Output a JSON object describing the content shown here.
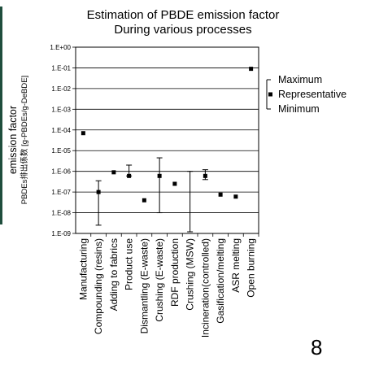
{
  "page": {
    "title_line1": "Estimation of PBDE emission factor",
    "title_line2": "During various processes",
    "page_number": "8"
  },
  "chart_data": {
    "type": "scatter",
    "title": "Estimation of PBDE emission factor During various processes",
    "ylabel": "emission factor",
    "ylabel_sub": "PBDEs排出係数 [g-PBDEs/g-DeBDE]",
    "yscale": "log",
    "ylim": [
      1e-09,
      1
    ],
    "yticks": [
      "1.E-09",
      "1.E-08",
      "1.E-07",
      "1.E-06",
      "1.E-05",
      "1.E-04",
      "1.E-03",
      "1.E-02",
      "1.E-01",
      "1.E+00"
    ],
    "grid": "horizontal",
    "legend_position": "right",
    "legend": [
      "Maximum",
      "Representative",
      "Minimum"
    ],
    "categories": [
      "Manufacturing",
      "Compounding (resins)",
      "Adding to fabrics",
      "Product use",
      "Dismantling (E-waste)",
      "Crushing (E-waste)",
      "RDF production",
      "Crushing (MSW)",
      "Incineration(controlled)",
      "Gasification/melting",
      "ASR melting",
      "Open burning"
    ],
    "series": [
      {
        "name": "Representative",
        "values": [
          7e-05,
          1e-07,
          9e-07,
          6e-07,
          4e-08,
          6e-07,
          2.5e-07,
          null,
          6e-07,
          7.5e-08,
          6e-08,
          0.09
        ]
      },
      {
        "name": "Maximum",
        "values": [
          null,
          3.5e-07,
          null,
          2e-06,
          null,
          4.5e-06,
          null,
          1e-06,
          1.2e-06,
          null,
          null,
          null
        ]
      },
      {
        "name": "Minimum",
        "values": [
          null,
          2.5e-09,
          null,
          6e-07,
          null,
          1e-08,
          null,
          1.2e-09,
          4e-07,
          null,
          null,
          null
        ]
      }
    ]
  }
}
